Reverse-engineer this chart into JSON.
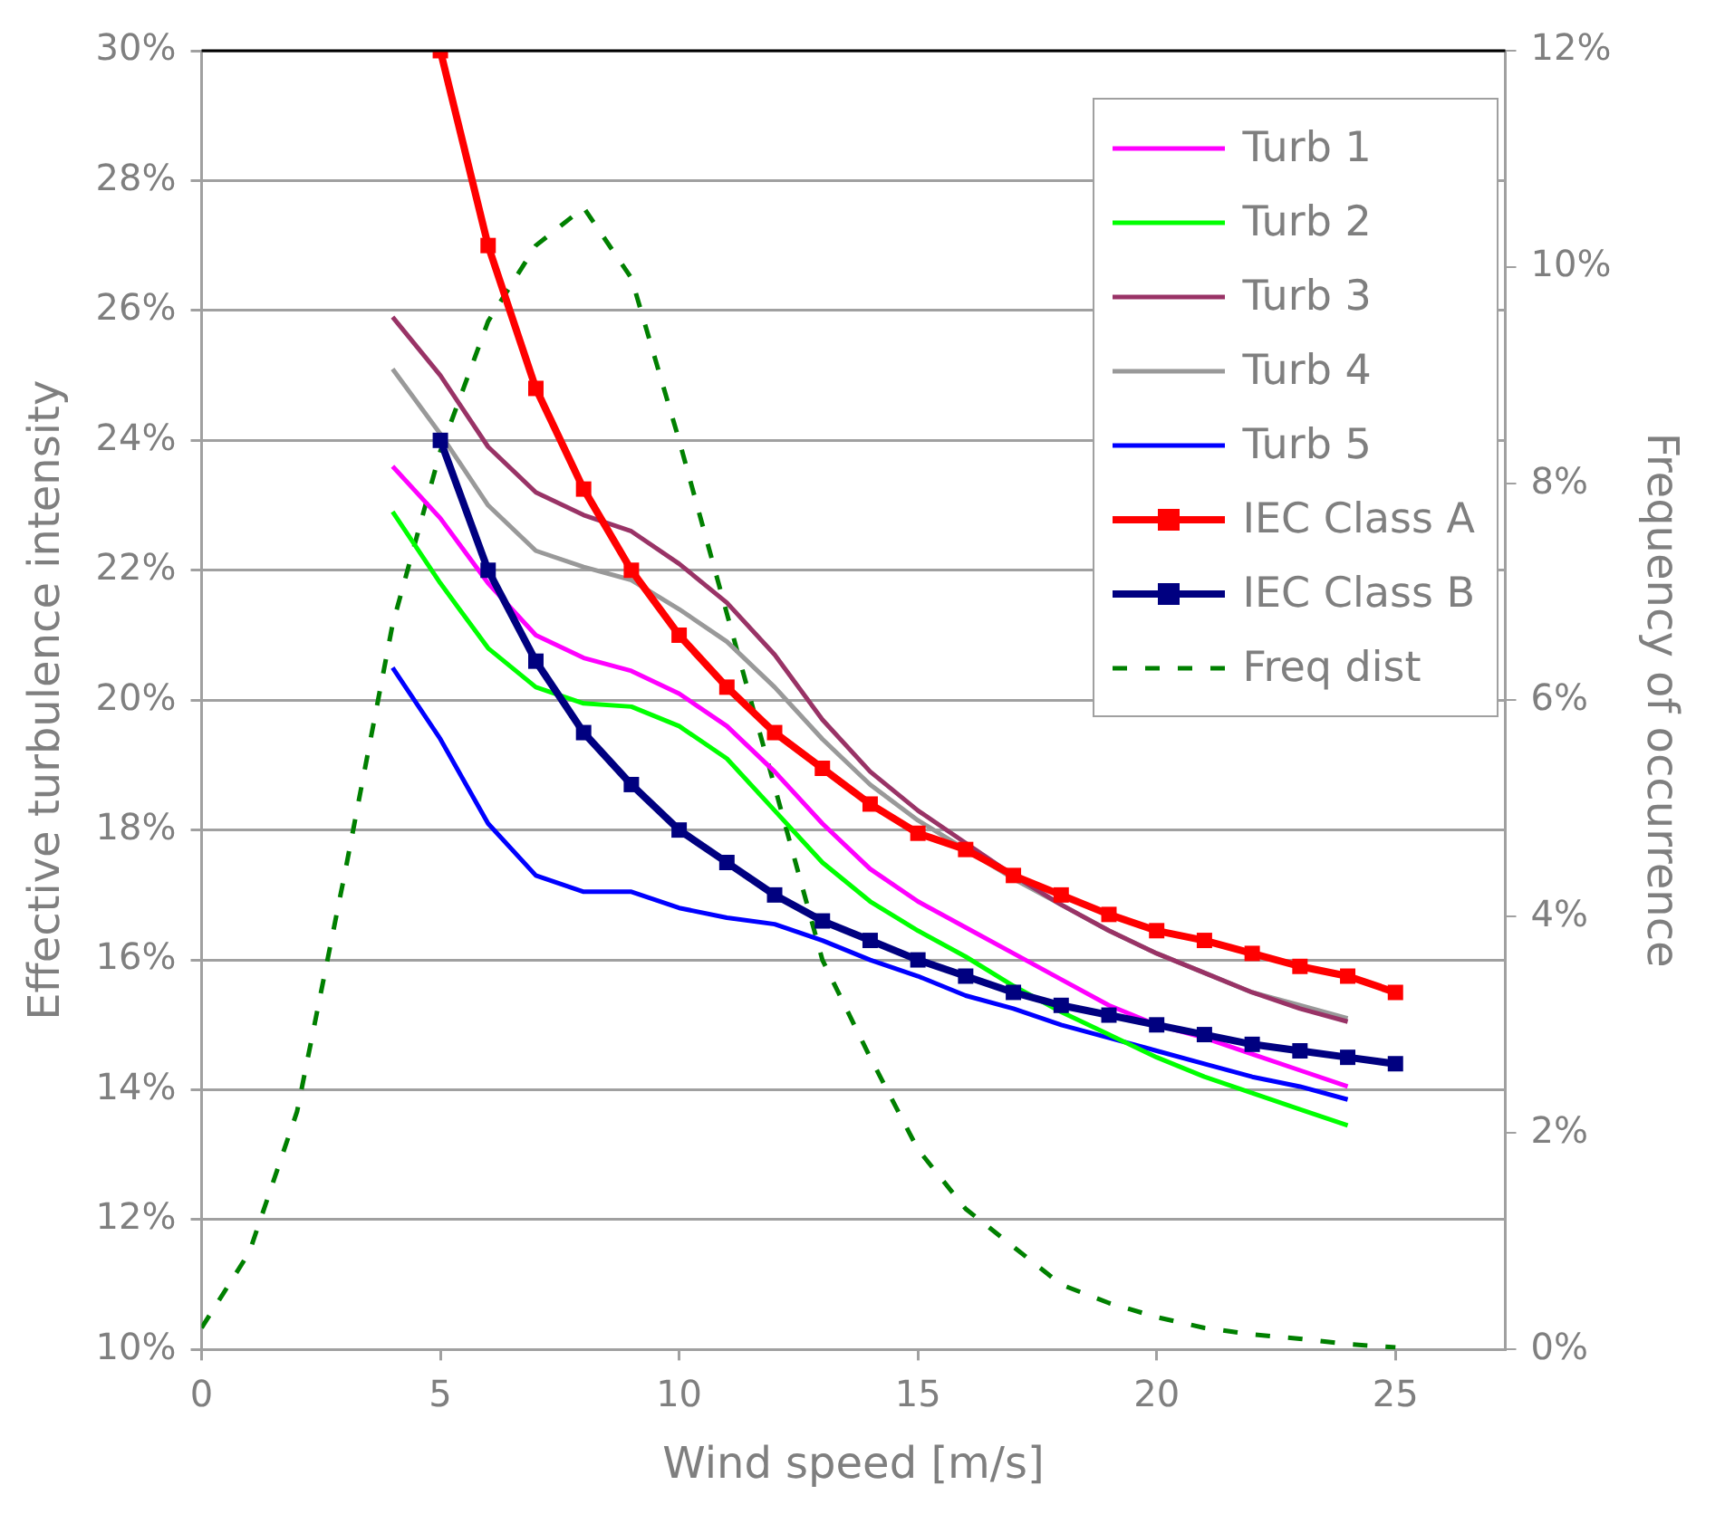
{
  "chart_data": {
    "type": "line",
    "xlabel": "Wind speed [m/s]",
    "ylabel": "Effective turbulence intensity",
    "y2label": "Frequency of occurrence",
    "xlim": [
      0,
      27.3
    ],
    "xticks": [
      0,
      5,
      10,
      15,
      20,
      25
    ],
    "ylim": [
      10,
      30
    ],
    "yticks": [
      {
        "value": 10,
        "label": "10%"
      },
      {
        "value": 12,
        "label": "12%"
      },
      {
        "value": 14,
        "label": "14%"
      },
      {
        "value": 16,
        "label": "16%"
      },
      {
        "value": 18,
        "label": "18%"
      },
      {
        "value": 20,
        "label": "20%"
      },
      {
        "value": 22,
        "label": "22%"
      },
      {
        "value": 24,
        "label": "24%"
      },
      {
        "value": 26,
        "label": "26%"
      },
      {
        "value": 28,
        "label": "28%"
      },
      {
        "value": 30,
        "label": "30%"
      }
    ],
    "y2lim": [
      0,
      12
    ],
    "y2ticks": [
      {
        "value": 0,
        "label": "0%"
      },
      {
        "value": 2,
        "label": "2%"
      },
      {
        "value": 4,
        "label": "4%"
      },
      {
        "value": 6,
        "label": "6%"
      },
      {
        "value": 8,
        "label": "8%"
      },
      {
        "value": 10,
        "label": "10%"
      },
      {
        "value": 12,
        "label": "12%"
      }
    ],
    "grid": "y",
    "legend": "top right",
    "marker": "none",
    "series": [
      {
        "name": "Turb 1",
        "color": "#ff00ff",
        "x": [
          4,
          5,
          6,
          7,
          8,
          9,
          10,
          11,
          12,
          13,
          14,
          15,
          16,
          17,
          18,
          19,
          20,
          21,
          22,
          23,
          24
        ],
        "values": [
          23.6,
          22.8,
          21.8,
          21.0,
          20.65,
          20.45,
          20.1,
          19.6,
          18.9,
          18.1,
          17.4,
          16.9,
          16.5,
          16.1,
          15.7,
          15.3,
          15.0,
          14.8,
          14.55,
          14.3,
          14.05
        ]
      },
      {
        "name": "Turb 2",
        "color": "#00ff00",
        "x": [
          4,
          5,
          6,
          7,
          8,
          9,
          10,
          11,
          12,
          13,
          14,
          15,
          16,
          17,
          18,
          19,
          20,
          21,
          22,
          23,
          24
        ],
        "values": [
          22.9,
          21.8,
          20.8,
          20.2,
          19.95,
          19.9,
          19.6,
          19.1,
          18.3,
          17.5,
          16.9,
          16.45,
          16.05,
          15.6,
          15.2,
          14.85,
          14.5,
          14.2,
          13.95,
          13.7,
          13.45
        ]
      },
      {
        "name": "Turb 3",
        "color": "#993366",
        "x": [
          4,
          5,
          6,
          7,
          8,
          9,
          10,
          11,
          12,
          13,
          14,
          15,
          16,
          17,
          18,
          19,
          20,
          21,
          22,
          23,
          24
        ],
        "values": [
          25.9,
          25.0,
          23.9,
          23.2,
          22.85,
          22.6,
          22.1,
          21.5,
          20.7,
          19.7,
          18.9,
          18.3,
          17.8,
          17.3,
          16.85,
          16.45,
          16.1,
          15.8,
          15.5,
          15.25,
          15.05
        ]
      },
      {
        "name": "Turb 4",
        "color": "#999999",
        "x": [
          4,
          5,
          6,
          7,
          8,
          9,
          10,
          11,
          12,
          13,
          14,
          15,
          16,
          17,
          18,
          19,
          20,
          21,
          22,
          23,
          24
        ],
        "values": [
          25.1,
          24.1,
          23.0,
          22.3,
          22.05,
          21.85,
          21.4,
          20.9,
          20.2,
          19.4,
          18.7,
          18.15,
          17.7,
          17.25,
          16.85,
          16.45,
          16.1,
          15.8,
          15.5,
          15.3,
          15.1
        ]
      },
      {
        "name": "Turb 5",
        "color": "#0000ff",
        "x": [
          4,
          5,
          6,
          7,
          8,
          9,
          10,
          11,
          12,
          13,
          14,
          15,
          16,
          17,
          18,
          19,
          20,
          21,
          22,
          23,
          24
        ],
        "values": [
          20.5,
          19.4,
          18.1,
          17.3,
          17.05,
          17.05,
          16.8,
          16.65,
          16.55,
          16.3,
          16.0,
          15.75,
          15.45,
          15.25,
          15.0,
          14.8,
          14.6,
          14.4,
          14.2,
          14.05,
          13.85
        ]
      },
      {
        "name": "IEC Class A",
        "color": "#ff0000",
        "marker": "square",
        "x": [
          5,
          6,
          7,
          8,
          9,
          10,
          11,
          12,
          13,
          14,
          15,
          16,
          17,
          18,
          19,
          20,
          21,
          22,
          23,
          24,
          25
        ],
        "values": [
          30,
          27.0,
          24.8,
          23.25,
          22.0,
          21.0,
          20.2,
          19.5,
          18.95,
          18.4,
          17.95,
          17.7,
          17.3,
          17.0,
          16.7,
          16.45,
          16.3,
          16.1,
          15.9,
          15.75,
          15.5
        ]
      },
      {
        "name": "IEC Class B",
        "color": "#000080",
        "marker": "square",
        "x": [
          5,
          6,
          7,
          8,
          9,
          10,
          11,
          12,
          13,
          14,
          15,
          16,
          17,
          18,
          19,
          20,
          21,
          22,
          23,
          24,
          25
        ],
        "values": [
          24.0,
          22.0,
          20.6,
          19.5,
          18.7,
          18.0,
          17.5,
          17.0,
          16.6,
          16.3,
          16.0,
          15.75,
          15.5,
          15.3,
          15.15,
          15.0,
          14.85,
          14.7,
          14.6,
          14.5,
          14.4
        ]
      },
      {
        "name": "Freq dist",
        "color": "#008000",
        "axis": "y2",
        "line_style": "dashed",
        "x": [
          0,
          1,
          2,
          3,
          4,
          5,
          6,
          7,
          8,
          9,
          10,
          11,
          12,
          13,
          14,
          15,
          16,
          17,
          18,
          19,
          20,
          21,
          22,
          23,
          24,
          25
        ],
        "values": [
          0.2,
          0.9,
          2.2,
          4.4,
          6.7,
          8.3,
          9.5,
          10.2,
          10.55,
          9.9,
          8.4,
          6.8,
          5.2,
          3.6,
          2.7,
          1.85,
          1.3,
          0.95,
          0.6,
          0.43,
          0.3,
          0.2,
          0.14,
          0.1,
          0.05,
          0.02
        ]
      }
    ]
  }
}
